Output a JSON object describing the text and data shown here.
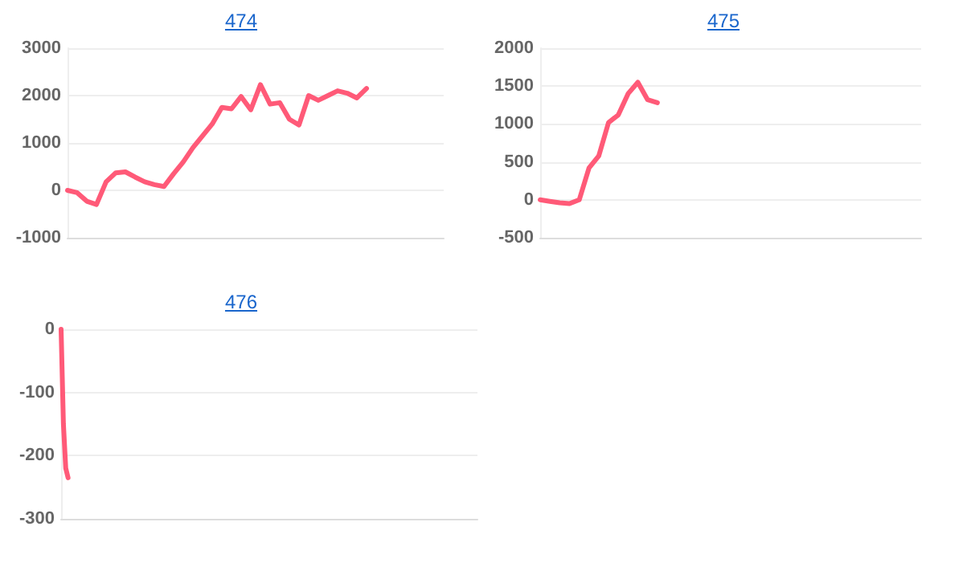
{
  "chart_data": [
    {
      "type": "line",
      "title": "474",
      "categories": [
        null,
        null,
        null,
        null,
        null,
        null,
        null,
        null,
        null,
        null,
        null,
        null,
        null,
        null,
        null,
        null,
        null,
        null,
        null,
        null,
        null,
        null,
        null,
        null,
        null,
        null,
        null,
        null,
        null,
        null,
        null,
        null,
        null,
        null,
        null,
        null,
        null,
        null,
        null,
        null
      ],
      "series": [
        {
          "color": "#ff5a78",
          "values": [
            0,
            -50,
            -230,
            -300,
            180,
            370,
            390,
            280,
            180,
            120,
            80,
            350,
            600,
            900,
            1150,
            1400,
            1750,
            1720,
            1980,
            1700,
            2230,
            1820,
            1850,
            1500,
            1380,
            2000,
            1900,
            2000,
            2100,
            2050,
            1950,
            2150,
            null,
            null,
            null,
            null,
            null,
            null,
            null,
            null
          ]
        }
      ],
      "ylim": [
        -1000,
        3000
      ],
      "yticks": [
        -1000,
        0,
        1000,
        2000,
        3000
      ],
      "grid": "y",
      "line_style": "solid",
      "tick_labels": "y"
    },
    {
      "type": "line",
      "title": "475",
      "categories": [
        null,
        null,
        null,
        null,
        null,
        null,
        null,
        null,
        null,
        null,
        null,
        null,
        null,
        null,
        null,
        null,
        null,
        null,
        null,
        null,
        null,
        null,
        null,
        null,
        null,
        null,
        null,
        null,
        null,
        null,
        null,
        null,
        null,
        null,
        null,
        null,
        null,
        null,
        null,
        null
      ],
      "series": [
        {
          "color": "#ff5a78",
          "values": [
            0,
            -20,
            -40,
            -50,
            0,
            420,
            580,
            1020,
            1120,
            1400,
            1550,
            1320,
            1280,
            null,
            null,
            null,
            null,
            null,
            null,
            null,
            null,
            null,
            null,
            null,
            null,
            null,
            null,
            null,
            null,
            null,
            null,
            null,
            null,
            null,
            null,
            null,
            null,
            null,
            null,
            null
          ]
        }
      ],
      "ylim": [
        -500,
        2000
      ],
      "yticks": [
        -500,
        0,
        500,
        1000,
        1500,
        2000
      ],
      "grid": "y",
      "line_style": "solid",
      "tick_labels": "y"
    },
    {
      "type": "line",
      "title": "476",
      "categories": [
        null,
        null,
        null,
        null,
        null,
        null,
        null,
        null,
        null,
        null,
        null,
        null,
        null,
        null,
        null,
        null,
        null,
        null,
        null,
        null,
        null,
        null,
        null,
        null,
        null,
        null,
        null,
        null,
        null,
        null,
        null,
        null,
        null,
        null,
        null,
        null,
        null,
        null,
        null,
        null,
        null,
        null,
        null,
        null,
        null,
        null,
        null,
        null,
        null,
        null,
        null,
        null,
        null,
        null,
        null,
        null,
        null,
        null,
        null,
        null,
        null,
        null,
        null,
        null,
        null,
        null,
        null,
        null,
        null,
        null,
        null,
        null,
        null,
        null,
        null,
        null,
        null,
        null,
        null,
        null,
        null,
        null,
        null,
        null,
        null,
        null,
        null,
        null,
        null,
        null,
        null,
        null,
        null,
        null,
        null,
        null,
        null,
        null,
        null,
        null,
        null,
        null,
        null,
        null,
        null,
        null,
        null,
        null,
        null,
        null,
        null,
        null,
        null,
        null,
        null,
        null,
        null,
        null,
        null,
        null,
        null,
        null,
        null,
        null,
        null,
        null,
        null,
        null,
        null,
        null,
        null,
        null,
        null,
        null,
        null,
        null,
        null,
        null,
        null,
        null,
        null,
        null,
        null,
        null,
        null,
        null,
        null,
        null,
        null,
        null,
        null,
        null,
        null,
        null,
        null,
        null,
        null,
        null,
        null,
        null,
        null,
        null,
        null,
        null,
        null,
        null,
        null,
        null,
        null,
        null,
        null,
        null,
        null,
        null,
        null,
        null,
        null,
        null,
        null,
        null
      ],
      "series": [
        {
          "color": "#ff5a78",
          "values": [
            0,
            -150,
            -220,
            -235,
            null,
            null,
            null,
            null,
            null,
            null,
            null,
            null,
            null,
            null,
            null,
            null,
            null,
            null,
            null,
            null,
            null,
            null,
            null,
            null,
            null,
            null,
            null,
            null,
            null,
            null,
            null,
            null,
            null,
            null,
            null,
            null,
            null,
            null,
            null,
            null,
            null,
            null,
            null,
            null,
            null,
            null,
            null,
            null,
            null,
            null,
            null,
            null,
            null,
            null,
            null,
            null,
            null,
            null,
            null,
            null,
            null,
            null,
            null,
            null,
            null,
            null,
            null,
            null,
            null,
            null,
            null,
            null,
            null,
            null,
            null,
            null,
            null,
            null,
            null,
            null,
            null,
            null,
            null,
            null,
            null,
            null,
            null,
            null,
            null,
            null,
            null,
            null,
            null,
            null,
            null,
            null,
            null,
            null,
            null,
            null,
            null,
            null,
            null,
            null,
            null,
            null,
            null,
            null,
            null,
            null,
            null,
            null,
            null,
            null,
            null,
            null,
            null,
            null,
            null,
            null,
            null,
            null,
            null,
            null,
            null,
            null,
            null,
            null,
            null,
            null,
            null,
            null,
            null,
            null,
            null,
            null,
            null,
            null,
            null,
            null,
            null,
            null,
            null,
            null,
            null,
            null,
            null,
            null,
            null,
            null,
            null,
            null,
            null,
            null,
            null,
            null,
            null,
            null,
            null,
            null,
            null,
            null,
            null,
            null,
            null,
            null,
            null,
            null,
            null,
            null,
            null,
            null,
            null,
            null,
            null,
            null,
            null,
            null,
            null,
            null
          ]
        }
      ],
      "ylim": [
        -300,
        0
      ],
      "yticks": [
        -300,
        -200,
        -100,
        0
      ],
      "grid": "y",
      "line_style": "solid",
      "tick_labels": "y"
    }
  ]
}
